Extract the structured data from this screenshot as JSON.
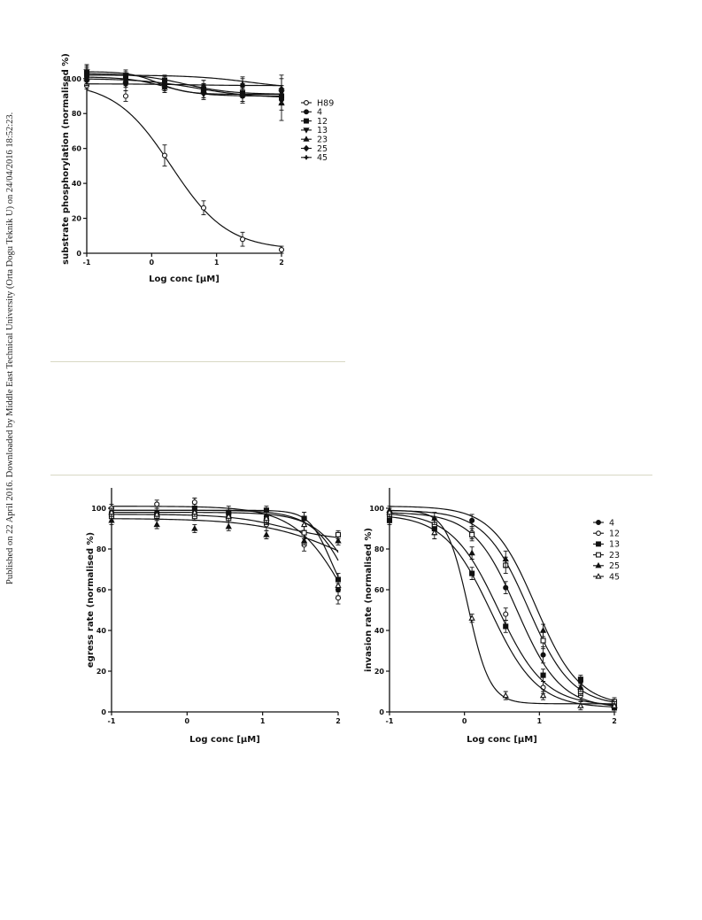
{
  "side_note": "Published on 22 April 2016. Downloaded by Middle East Technical University (Orta Dogu Teknik U) on 24/04/2016 18:52:23.",
  "colors": {
    "ink": "#111111",
    "rule": "#d8d8c4",
    "open_fill": "#ffffff"
  },
  "chart_data": [
    {
      "type": "scatter",
      "title": "",
      "xlabel": "Log conc [μM]",
      "ylabel": "substrate phosphorylation (normalised %)",
      "xlim": [
        -1,
        2
      ],
      "ylim": [
        0,
        108
      ],
      "xticks": [
        -1,
        0,
        1,
        2
      ],
      "yticks": [
        0,
        20,
        40,
        60,
        80,
        100
      ],
      "x": [
        -1,
        -0.4,
        0.2,
        0.8,
        1.4,
        2
      ],
      "legend_position": "right",
      "series": [
        {
          "name": "H89",
          "marker": "circle-open",
          "values": [
            96,
            90,
            56,
            26,
            8,
            2
          ],
          "errors": [
            2,
            3,
            6,
            4,
            4,
            2
          ],
          "fit": {
            "bottom": 2,
            "top": 98,
            "logec50": 0.3,
            "hill": 1
          }
        },
        {
          "name": "4",
          "marker": "circle",
          "values": [
            101,
            98,
            96,
            92,
            90,
            88
          ],
          "errors": [
            3,
            3,
            3,
            3,
            4,
            6
          ],
          "fit": {
            "bottom": 90,
            "top": 101,
            "logec50": 0.2,
            "hill": 1.5
          }
        },
        {
          "name": "12",
          "marker": "square",
          "values": [
            103,
            101,
            99,
            94,
            92,
            90
          ],
          "errors": [
            3,
            3,
            3,
            3,
            3,
            4
          ],
          "fit": {
            "bottom": 91,
            "top": 103,
            "logec50": 0.5,
            "hill": 1.2
          }
        },
        {
          "name": "13",
          "marker": "triangle-down",
          "values": [
            104,
            102,
            96,
            91,
            90,
            92
          ],
          "errors": [
            3,
            3,
            3,
            3,
            3,
            4
          ],
          "fit": {
            "bottom": 91,
            "top": 104,
            "logec50": 0.1,
            "hill": 2
          }
        },
        {
          "name": "23",
          "marker": "triangle-up",
          "values": [
            100,
            99,
            95,
            93,
            91,
            86
          ],
          "errors": [
            3,
            3,
            3,
            4,
            4,
            10
          ],
          "fit": {
            "bottom": 89,
            "top": 100,
            "logec50": 0.7,
            "hill": 1
          }
        },
        {
          "name": "25",
          "marker": "diamond",
          "values": [
            99,
            97,
            95,
            93,
            96,
            94
          ],
          "errors": [
            3,
            4,
            3,
            4,
            4,
            6
          ],
          "fit": {
            "bottom": 96,
            "top": 97,
            "logec50": 0.5,
            "hill": 1
          }
        },
        {
          "name": "45",
          "marker": "cross",
          "values": [
            102,
            100,
            98,
            96,
            97,
            94
          ],
          "errors": [
            6,
            3,
            3,
            3,
            4,
            8
          ],
          "fit": {
            "bottom": 94,
            "top": 102,
            "logec50": 1.5,
            "hill": 1
          }
        }
      ]
    },
    {
      "type": "scatter",
      "title": "",
      "xlabel": "Log conc [μM]",
      "ylabel": "egress rate (normalised %)",
      "xlim": [
        -1,
        2
      ],
      "ylim": [
        0,
        110
      ],
      "xticks": [
        -1,
        0,
        1,
        2
      ],
      "yticks": [
        0,
        20,
        40,
        60,
        80,
        100
      ],
      "x": [
        -1,
        -0.4,
        0.1,
        0.55,
        1.05,
        1.55,
        2
      ],
      "series": [
        {
          "name": "4",
          "marker": "circle",
          "values": [
            98,
            98,
            98,
            97,
            96,
            95,
            60
          ],
          "errors": [
            2,
            2,
            2,
            2,
            2,
            3,
            3
          ],
          "fit": {
            "bottom": 0,
            "top": 98,
            "logec50": 2.4,
            "hill": 1.5
          }
        },
        {
          "name": "12",
          "marker": "circle-open",
          "values": [
            100,
            102,
            103,
            98,
            92,
            82,
            56
          ],
          "errors": [
            2,
            2,
            2,
            3,
            3,
            3,
            3
          ],
          "fit": {
            "bottom": 0,
            "top": 101,
            "logec50": 2.2,
            "hill": 1.2
          }
        },
        {
          "name": "13",
          "marker": "square",
          "values": [
            97,
            97,
            100,
            98,
            99,
            95,
            65
          ],
          "errors": [
            2,
            2,
            2,
            2,
            2,
            3,
            3
          ],
          "fit": {
            "bottom": 50,
            "top": 99,
            "logec50": 1.9,
            "hill": 3
          }
        },
        {
          "name": "23",
          "marker": "square-open",
          "values": [
            96,
            96,
            96,
            95,
            94,
            88,
            87
          ],
          "errors": [
            2,
            2,
            2,
            2,
            2,
            3,
            2
          ],
          "fit": {
            "bottom": 84,
            "top": 97,
            "logec50": 1.3,
            "hill": 1.2
          }
        },
        {
          "name": "25",
          "marker": "triangle-up",
          "values": [
            94,
            92,
            90,
            91,
            87,
            84,
            84
          ],
          "errors": [
            2,
            2,
            2,
            2,
            2,
            2,
            2
          ],
          "fit": {
            "bottom": 60,
            "top": 95,
            "logec50": 2.1,
            "hill": 0.8
          }
        },
        {
          "name": "45",
          "marker": "triangle-up-open",
          "values": [
            98,
            97,
            98,
            96,
            95,
            92,
            62
          ],
          "errors": [
            2,
            2,
            2,
            2,
            2,
            3,
            3
          ],
          "fit": {
            "bottom": 0,
            "top": 99,
            "logec50": 2.3,
            "hill": 1.6
          }
        }
      ]
    },
    {
      "type": "scatter",
      "title": "",
      "xlabel": "Log conc [μM]",
      "ylabel": "invasion rate (normalised %)",
      "xlim": [
        -1,
        2
      ],
      "ylim": [
        0,
        110
      ],
      "xticks": [
        -1,
        0,
        1,
        2
      ],
      "yticks": [
        0,
        20,
        40,
        60,
        80,
        100
      ],
      "x": [
        -1,
        -0.4,
        0.1,
        0.55,
        1.05,
        1.55,
        2
      ],
      "legend_position": "top-right",
      "series": [
        {
          "name": "4",
          "marker": "circle",
          "values": [
            95,
            92,
            94,
            61,
            28,
            15,
            3
          ],
          "errors": [
            2,
            3,
            3,
            3,
            4,
            2,
            2
          ],
          "fit": {
            "bottom": 2,
            "top": 98,
            "logec50": 0.7,
            "hill": 1.5
          }
        },
        {
          "name": "12",
          "marker": "circle-open",
          "values": [
            96,
            90,
            88,
            48,
            12,
            8,
            4
          ],
          "errors": [
            2,
            3,
            3,
            3,
            3,
            2,
            2
          ],
          "fit": {
            "bottom": 3,
            "top": 98,
            "logec50": 0.45,
            "hill": 1.4
          }
        },
        {
          "name": "13",
          "marker": "square",
          "values": [
            94,
            90,
            68,
            42,
            18,
            16,
            2
          ],
          "errors": [
            2,
            3,
            3,
            3,
            3,
            2,
            2
          ],
          "fit": {
            "bottom": 2,
            "top": 97,
            "logec50": 0.35,
            "hill": 1.4
          }
        },
        {
          "name": "23",
          "marker": "square-open",
          "values": [
            97,
            92,
            87,
            72,
            35,
            10,
            5
          ],
          "errors": [
            2,
            3,
            3,
            4,
            4,
            2,
            2
          ],
          "fit": {
            "bottom": 3,
            "top": 99,
            "logec50": 0.85,
            "hill": 1.5
          }
        },
        {
          "name": "25",
          "marker": "triangle-up",
          "values": [
            99,
            95,
            78,
            75,
            40,
            12,
            3
          ],
          "errors": [
            2,
            3,
            3,
            4,
            3,
            2,
            2
          ],
          "fit": {
            "bottom": 3,
            "top": 101,
            "logec50": 0.95,
            "hill": 1.5
          }
        },
        {
          "name": "45",
          "marker": "triangle-up-open",
          "values": [
            98,
            88,
            46,
            8,
            8,
            3,
            3
          ],
          "errors": [
            2,
            3,
            2,
            2,
            2,
            2,
            2
          ],
          "fit": {
            "bottom": 4,
            "top": 99,
            "logec50": 0.05,
            "hill": 3
          }
        }
      ]
    }
  ]
}
